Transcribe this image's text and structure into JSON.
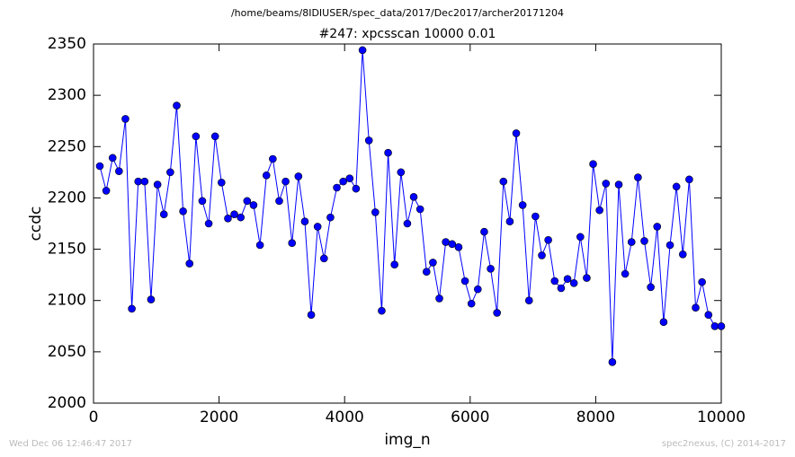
{
  "chart_data": {
    "type": "line",
    "title": "/home/beams/8IDIUSER/spec_data/2017/Dec2017/archer20171204",
    "subtitle": "#247: xpcsscan 10000 0.01",
    "x_label": "img_n",
    "y_label": "ccdc",
    "footer_left": "Wed Dec 06 12:46:47 2017",
    "footer_right": "spec2nexus, (C) 2014-2017",
    "x": [
      100,
      202,
      304,
      406,
      508,
      610,
      712,
      814,
      916,
      1019,
      1121,
      1223,
      1325,
      1427,
      1529,
      1631,
      1733,
      1835,
      1937,
      2039,
      2141,
      2243,
      2345,
      2447,
      2549,
      2652,
      2754,
      2856,
      2958,
      3060,
      3162,
      3264,
      3366,
      3468,
      3570,
      3672,
      3774,
      3876,
      3978,
      4080,
      4182,
      4285,
      4387,
      4489,
      4591,
      4693,
      4795,
      4897,
      4999,
      5101,
      5203,
      5305,
      5407,
      5509,
      5611,
      5713,
      5816,
      5918,
      6020,
      6122,
      6224,
      6326,
      6428,
      6530,
      6632,
      6734,
      6836,
      6938,
      7040,
      7142,
      7244,
      7346,
      7449,
      7551,
      7653,
      7755,
      7857,
      7959,
      8061,
      8163,
      8265,
      8367,
      8469,
      8571,
      8673,
      8775,
      8877,
      8979,
      9082,
      9184,
      9286,
      9388,
      9490,
      9592,
      9694,
      9796,
      9898,
      10000
    ],
    "series": [
      {
        "name": "ccdc",
        "color": "#0000ff",
        "values": [
          2231,
          2207,
          2239,
          2226,
          2277,
          2092,
          2216,
          2216,
          2101,
          2213,
          2184,
          2225,
          2290,
          2187,
          2136,
          2260,
          2197,
          2175,
          2260,
          2215,
          2180,
          2184,
          2181,
          2197,
          2193,
          2154,
          2222,
          2238,
          2197,
          2216,
          2156,
          2221,
          2177,
          2086,
          2172,
          2141,
          2181,
          2210,
          2216,
          2219,
          2209,
          2344,
          2256,
          2186,
          2090,
          2244,
          2135,
          2225,
          2175,
          2201,
          2189,
          2128,
          2137,
          2102,
          2157,
          2155,
          2152,
          2119,
          2097,
          2111,
          2167,
          2131,
          2088,
          2216,
          2177,
          2263,
          2193,
          2100,
          2182,
          2144,
          2159,
          2119,
          2112,
          2121,
          2117,
          2162,
          2122,
          2233,
          2188,
          2214,
          2040,
          2213,
          2126,
          2157,
          2220,
          2158,
          2113,
          2172,
          2079,
          2154,
          2211,
          2145,
          2218,
          2093,
          2118,
          2086,
          2075,
          2075
        ]
      }
    ],
    "xlim": [
      0,
      10000
    ],
    "xticks": [
      0,
      2000,
      4000,
      6000,
      8000,
      10000
    ],
    "ylim": [
      2000,
      2350
    ],
    "yticks": [
      2000,
      2050,
      2100,
      2150,
      2200,
      2250,
      2300,
      2350
    ],
    "grid": false
  }
}
